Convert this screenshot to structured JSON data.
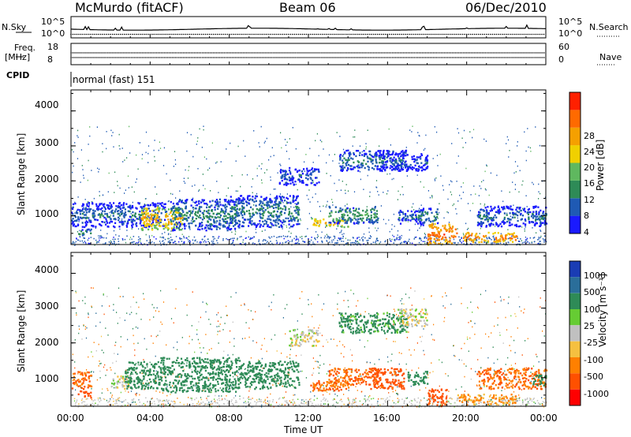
{
  "header": {
    "station": "McMurdo (fitACF)",
    "beam": "Beam 06",
    "date": "06/Dec/2010"
  },
  "top_panels": {
    "nsky_label": "N.Sky",
    "nsky_ticks": [
      "10^5",
      "10^0"
    ],
    "nsearch_label": "N.Search",
    "nsearch_ticks": [
      "10^5",
      "10^0"
    ],
    "freq_label": "Freq.",
    "freq_unit": "[MHz]",
    "freq_ticks": [
      "18",
      "8"
    ],
    "nave_label": "Nave",
    "nave_ticks": [
      "60",
      "0"
    ],
    "cpid_label": "CPID",
    "cpid_value": "normal (fast) 151"
  },
  "colors": {
    "power_scale": [
      "#1a1aff",
      "#1f5ab4",
      "#2e8b57",
      "#5fb85f",
      "#f0d000",
      "#f5a000",
      "#ff6a00",
      "#ff2000"
    ],
    "velocity_scale": [
      "#1a3cb4",
      "#2a6e9a",
      "#2e8b57",
      "#66cc33",
      "#c0c0c0",
      "#f5c040",
      "#ff8000",
      "#ff5000",
      "#ff0000"
    ]
  },
  "chart_data": [
    {
      "type": "heatmap",
      "title": "",
      "xlabel": "Time UT",
      "ylabel": "Slant Range [km]",
      "x_ticks": [
        "00:00",
        "04:00",
        "08:00",
        "12:00",
        "16:00",
        "20:00",
        "00:00"
      ],
      "xlim": [
        0,
        24
      ],
      "y_ticks": [
        "1000",
        "2000",
        "3000",
        "4000"
      ],
      "ylim": [
        180,
        4600
      ],
      "colorbar": {
        "label": "Power [dB]",
        "ticks": [
          "4",
          "8",
          "12",
          "16",
          "20",
          "24",
          "28"
        ],
        "range": [
          0,
          32
        ]
      },
      "features": [
        {
          "t": [
            0.0,
            4.8
          ],
          "r": [
            700,
            1400
          ],
          "level": 8
        },
        {
          "t": [
            0.3,
            1.0
          ],
          "r": [
            450,
            650
          ],
          "level": 12
        },
        {
          "t": [
            3.5,
            5.6
          ],
          "r": [
            600,
            1300
          ],
          "level": 22
        },
        {
          "t": [
            5.0,
            8.5
          ],
          "r": [
            600,
            1500
          ],
          "level": 10
        },
        {
          "t": [
            8.0,
            11.5
          ],
          "r": [
            700,
            1600
          ],
          "level": 10
        },
        {
          "t": [
            10.5,
            12.5
          ],
          "r": [
            1900,
            2400
          ],
          "level": 7
        },
        {
          "t": [
            12.0,
            14.0
          ],
          "r": [
            700,
            950
          ],
          "level": 22
        },
        {
          "t": [
            13.0,
            15.5
          ],
          "r": [
            800,
            1300
          ],
          "level": 12
        },
        {
          "t": [
            13.5,
            17.0
          ],
          "r": [
            2300,
            2900
          ],
          "level": 9
        },
        {
          "t": [
            16.5,
            17.7
          ],
          "r": [
            800,
            1200
          ],
          "level": 8
        },
        {
          "t": [
            15.5,
            18.0
          ],
          "r": [
            2300,
            2800
          ],
          "level": 6
        },
        {
          "t": [
            17.5,
            18.5
          ],
          "r": [
            750,
            1250
          ],
          "level": 10
        },
        {
          "t": [
            18.0,
            19.5
          ],
          "r": [
            200,
            800
          ],
          "level": 27
        },
        {
          "t": [
            19.8,
            22.5
          ],
          "r": [
            250,
            550
          ],
          "level": 25
        },
        {
          "t": [
            20.5,
            24.0
          ],
          "r": [
            700,
            1300
          ],
          "level": 8
        },
        {
          "t": [
            23.3,
            24.0
          ],
          "r": [
            800,
            1150
          ],
          "level": 11
        }
      ]
    },
    {
      "type": "heatmap",
      "title": "",
      "xlabel": "Time UT",
      "ylabel": "Slant Range [km]",
      "x_ticks": [
        "00:00",
        "04:00",
        "08:00",
        "12:00",
        "16:00",
        "20:00",
        "00:00"
      ],
      "xlim": [
        0,
        24
      ],
      "y_ticks": [
        "1000",
        "2000",
        "3000",
        "4000"
      ],
      "ylim": [
        180,
        4600
      ],
      "colorbar": {
        "label": "Velocity [m s⁻¹]",
        "ticks": [
          "1000",
          "500",
          "100",
          "25",
          "-25",
          "-100",
          "-500",
          "-1000"
        ],
        "range": [
          -1250,
          1250
        ]
      },
      "features": [
        {
          "t": [
            0.0,
            1.0
          ],
          "r": [
            700,
            1200
          ],
          "level": -300
        },
        {
          "t": [
            0.3,
            1.0
          ],
          "r": [
            450,
            650
          ],
          "level": -500
        },
        {
          "t": [
            2.0,
            3.0
          ],
          "r": [
            700,
            1100
          ],
          "level": 0
        },
        {
          "t": [
            2.7,
            4.5
          ],
          "r": [
            700,
            1500
          ],
          "level": 150
        },
        {
          "t": [
            4.5,
            8.5
          ],
          "r": [
            600,
            1600
          ],
          "level": 200
        },
        {
          "t": [
            8.5,
            11.5
          ],
          "r": [
            700,
            1500
          ],
          "level": 150
        },
        {
          "t": [
            11.0,
            12.5
          ],
          "r": [
            1900,
            2400
          ],
          "level": 0
        },
        {
          "t": [
            12.0,
            14.0
          ],
          "r": [
            650,
            950
          ],
          "level": -300
        },
        {
          "t": [
            13.0,
            15.5
          ],
          "r": [
            800,
            1300
          ],
          "level": -300
        },
        {
          "t": [
            13.5,
            17.0
          ],
          "r": [
            2300,
            2900
          ],
          "level": 100
        },
        {
          "t": [
            15.0,
            16.8
          ],
          "r": [
            700,
            1300
          ],
          "level": -350
        },
        {
          "t": [
            16.5,
            18.0
          ],
          "r": [
            2500,
            3000
          ],
          "level": 0
        },
        {
          "t": [
            17.0,
            18.0
          ],
          "r": [
            800,
            1200
          ],
          "level": 150
        },
        {
          "t": [
            18.0,
            19.0
          ],
          "r": [
            200,
            700
          ],
          "level": -500
        },
        {
          "t": [
            19.5,
            22.5
          ],
          "r": [
            250,
            550
          ],
          "level": -80
        },
        {
          "t": [
            20.5,
            24.0
          ],
          "r": [
            700,
            1300
          ],
          "level": -300
        },
        {
          "t": [
            23.3,
            24.0
          ],
          "r": [
            800,
            1150
          ],
          "level": 150
        }
      ]
    }
  ]
}
